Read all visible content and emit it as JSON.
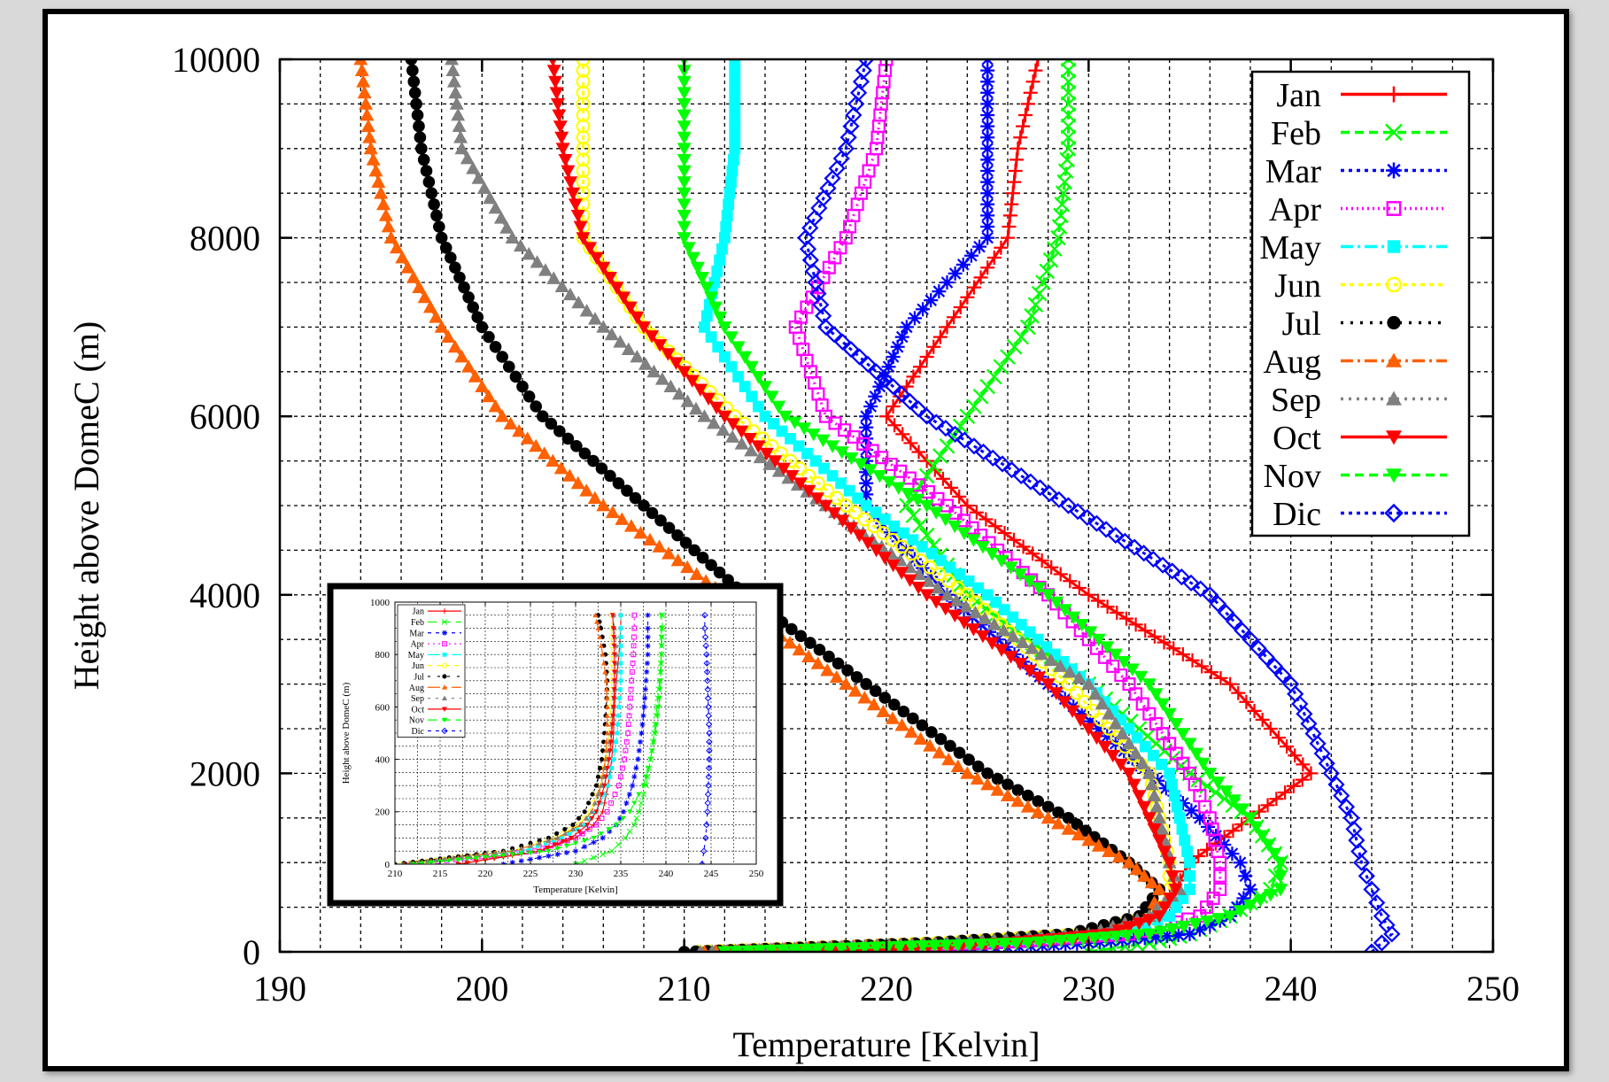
{
  "chart_data": [
    {
      "type": "line",
      "title": "",
      "xlabel": "Temperature [Kelvin]",
      "ylabel": "Height above DomeC (m)",
      "xlim": [
        190,
        250
      ],
      "ylim": [
        0,
        10000
      ],
      "xticks": [
        "190",
        "200",
        "210",
        "220",
        "230",
        "240",
        "250"
      ],
      "yticks": [
        "0",
        "2000",
        "4000",
        "6000",
        "8000",
        "10000"
      ],
      "grid": true,
      "legend_position": "top-right",
      "y": [
        0,
        100,
        200,
        400,
        700,
        1000,
        1500,
        2000,
        3000,
        4000,
        5000,
        6000,
        7000,
        8000,
        9000,
        10000
      ],
      "series": [
        {
          "name": "Jan",
          "color": "#ff0000",
          "marker": "plus",
          "dash": "",
          "x": [
            217,
            226,
            231,
            233.5,
            234.3,
            235,
            238,
            241,
            237,
            230,
            224,
            220,
            223,
            226,
            226.5,
            227.5
          ]
        },
        {
          "name": "Feb",
          "color": "#00ff00",
          "marker": "cross",
          "dash": "10,6",
          "x": [
            230,
            233,
            235,
            237,
            239,
            239.5,
            238,
            235,
            230,
            224,
            221,
            224,
            227,
            228.5,
            229,
            229
          ]
        },
        {
          "name": "Mar",
          "color": "#0000ff",
          "marker": "star",
          "dash": "4,5",
          "x": [
            222,
            230,
            235,
            237,
            238,
            237.5,
            235.5,
            233,
            228,
            223,
            219,
            219,
            221,
            225,
            225,
            225
          ]
        },
        {
          "name": "Apr",
          "color": "#ff00ff",
          "marker": "square",
          "dash": "2,4",
          "x": [
            211.8,
            225,
            232,
            235.5,
            236.5,
            236.5,
            236,
            235,
            232,
            228,
            223,
            217,
            215.5,
            218,
            219.5,
            220
          ]
        },
        {
          "name": "May",
          "color": "#00ffff",
          "marker": "filled-square",
          "dash": "14,5,3,5",
          "x": [
            211,
            224,
            231,
            234,
            235,
            235,
            234.5,
            234,
            230,
            225,
            219,
            214,
            211,
            212,
            212.5,
            212.5
          ]
        },
        {
          "name": "Jun",
          "color": "#ffff00",
          "marker": "circle",
          "dash": "5,5",
          "x": [
            210.7,
            223,
            230,
            233,
            234,
            234,
            233.5,
            233,
            229,
            224,
            218,
            212.5,
            208,
            205,
            205,
            205
          ]
        },
        {
          "name": "Jul",
          "color": "#000000",
          "marker": "filled-circle",
          "dash": "3,8",
          "x": [
            210,
            222,
            229,
            232.5,
            233.5,
            232,
            229,
            225,
            219,
            213,
            208,
            203,
            200,
            198,
            197,
            196.5
          ]
        },
        {
          "name": "Aug",
          "color": "#ff6000",
          "marker": "filled-triangle",
          "dash": "14,5,3,5",
          "x": [
            211,
            223,
            230,
            233,
            233.5,
            232,
            228,
            224,
            218,
            212,
            206,
            201,
            198,
            195.5,
            194.5,
            194
          ]
        },
        {
          "name": "Sep",
          "color": "#808080",
          "marker": "filled-triangle",
          "dash": "3,6",
          "x": [
            210.8,
            223,
            230,
            233,
            234.5,
            234,
            233.5,
            233,
            230,
            223,
            217,
            211,
            206,
            201.5,
            199,
            198.5
          ]
        },
        {
          "name": "Oct",
          "color": "#ff0000",
          "marker": "filled-inverted-triangle",
          "dash": "",
          "x": [
            217,
            226,
            231,
            233.5,
            234.3,
            234,
            233,
            232,
            228,
            222,
            217,
            212,
            208,
            205,
            204,
            203.5
          ]
        },
        {
          "name": "Nov",
          "color": "#00ff00",
          "marker": "filled-inverted-triangle",
          "dash": "10,6",
          "x": [
            212,
            227,
            233,
            237,
            239.5,
            239.5,
            238,
            236,
            233,
            228,
            222,
            215,
            212,
            210,
            210,
            210
          ]
        },
        {
          "name": "Dic",
          "color": "#0000ff",
          "marker": "diamond",
          "dash": "4,5",
          "x": [
            244,
            244.5,
            245,
            244.5,
            244,
            243.5,
            243,
            242,
            240,
            236,
            229,
            222,
            217,
            216,
            218,
            219
          ]
        }
      ]
    },
    {
      "type": "line",
      "title": "",
      "xlabel": "Temperature [Kelvin]",
      "ylabel": "Height above DomeC (m)",
      "xlim": [
        210,
        250
      ],
      "ylim": [
        0,
        1000
      ],
      "xticks": [
        "210",
        "215",
        "220",
        "225",
        "230",
        "235",
        "240",
        "245",
        "250"
      ],
      "yticks": [
        "0",
        "200",
        "400",
        "600",
        "800",
        "1000"
      ],
      "grid": true,
      "legend_position": "top-left",
      "y": [
        0,
        50,
        100,
        150,
        200,
        300,
        400,
        500,
        600,
        700,
        800,
        900,
        950
      ],
      "series": [
        {
          "name": "Jan",
          "color": "#ff0000",
          "marker": "plus",
          "dash": "",
          "x": [
            217,
            226,
            230,
            232,
            233,
            233.6,
            234,
            234.2,
            234.3,
            234.5,
            234.8,
            235,
            235
          ]
        },
        {
          "name": "Feb",
          "color": "#00ff00",
          "marker": "cross",
          "dash": "10,6",
          "x": [
            230,
            234,
            235.5,
            236.5,
            237,
            237.8,
            238.3,
            238.7,
            239,
            239.3,
            239.5,
            239.6,
            239.6
          ]
        },
        {
          "name": "Mar",
          "color": "#0000ff",
          "marker": "star",
          "dash": "4,5",
          "x": [
            222,
            230,
            233,
            234.5,
            235.3,
            236.3,
            236.9,
            237.3,
            237.6,
            237.8,
            238,
            238,
            238
          ]
        },
        {
          "name": "Apr",
          "color": "#ff00ff",
          "marker": "square",
          "dash": "2,4",
          "x": [
            211.8,
            225.5,
            230,
            232.3,
            233.5,
            234.8,
            235.4,
            235.8,
            236,
            236.2,
            236.4,
            236.5,
            236.5
          ]
        },
        {
          "name": "May",
          "color": "#00ffff",
          "marker": "filled-square",
          "dash": "14,5,3,5",
          "x": [
            211,
            224,
            228.5,
            231,
            232.3,
            233.6,
            234.2,
            234.6,
            234.8,
            235,
            235,
            235,
            235
          ]
        },
        {
          "name": "Jun",
          "color": "#ffff00",
          "marker": "circle",
          "dash": "5,5",
          "x": [
            210.7,
            223,
            227.8,
            230.3,
            231.6,
            232.8,
            233.4,
            233.7,
            233.9,
            234,
            234,
            234,
            234
          ]
        },
        {
          "name": "Jul",
          "color": "#000000",
          "marker": "filled-circle",
          "dash": "3,8",
          "x": [
            210,
            222,
            227,
            229.7,
            231,
            232.3,
            232.9,
            233.2,
            233.4,
            233.5,
            233.3,
            232.8,
            232.5
          ]
        },
        {
          "name": "Aug",
          "color": "#ff6000",
          "marker": "filled-triangle",
          "dash": "14,5,3,5",
          "x": [
            211,
            223,
            228,
            230.5,
            231.8,
            232.8,
            233.3,
            233.5,
            233.5,
            233.4,
            233,
            232.5,
            232.2
          ]
        },
        {
          "name": "Sep",
          "color": "#808080",
          "marker": "filled-triangle",
          "dash": "3,6",
          "x": [
            210.8,
            223,
            228,
            230.6,
            231.8,
            232.9,
            233.5,
            233.9,
            234.2,
            234.4,
            234.5,
            234.3,
            234.2
          ]
        },
        {
          "name": "Oct",
          "color": "#ff0000",
          "marker": "filled-inverted-triangle",
          "dash": "",
          "x": [
            217,
            226,
            229.5,
            231.3,
            232.3,
            233.2,
            233.7,
            234,
            234.2,
            234.3,
            234.3,
            234.2,
            234.1
          ]
        },
        {
          "name": "Nov",
          "color": "#00ff00",
          "marker": "filled-inverted-triangle",
          "dash": "10,6",
          "x": [
            212,
            227,
            232,
            234.5,
            236,
            237.5,
            238.3,
            238.8,
            239.2,
            239.4,
            239.5,
            239.5,
            239.5
          ]
        },
        {
          "name": "Dic",
          "color": "#0000ff",
          "marker": "diamond",
          "dash": "4,5",
          "x": [
            244,
            244.2,
            244.4,
            244.5,
            244.6,
            244.7,
            244.8,
            244.8,
            244.7,
            244.6,
            244.5,
            244.3,
            244.3
          ]
        }
      ]
    }
  ]
}
